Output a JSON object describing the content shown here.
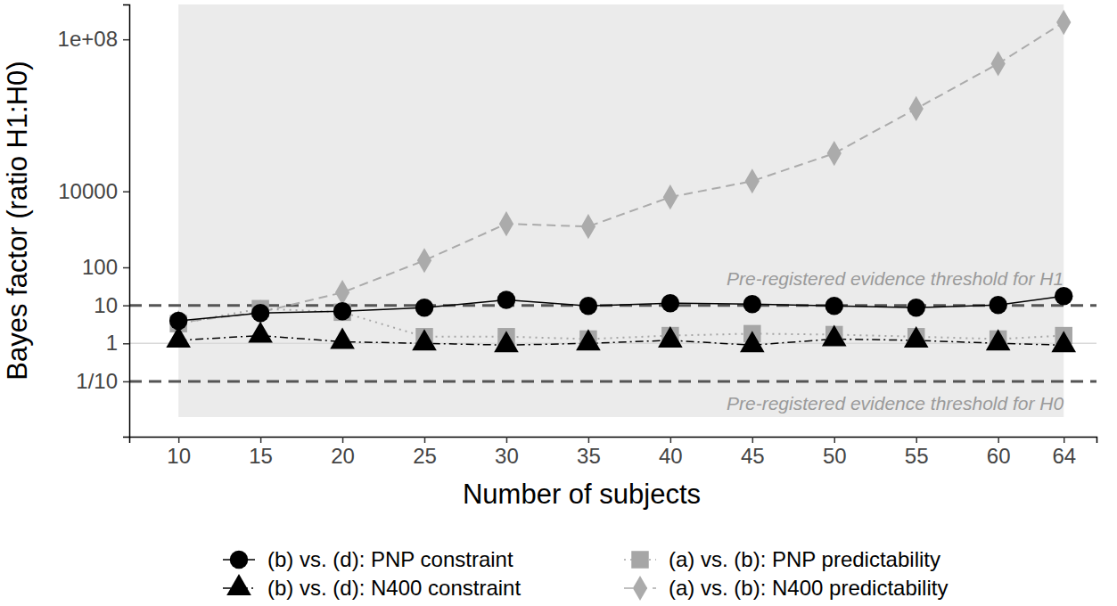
{
  "chart_data": {
    "type": "line",
    "x_label": "Number of subjects",
    "y_label": "Bayes factor (ratio H1:H0)",
    "log": "y",
    "x": [
      10,
      15,
      20,
      25,
      30,
      35,
      40,
      45,
      50,
      55,
      60,
      64
    ],
    "xlim": [
      7,
      66
    ],
    "xticks": [
      10,
      15,
      20,
      25,
      30,
      35,
      40,
      45,
      50,
      55,
      60,
      64
    ],
    "ylim": [
      0.0035,
      830000000
    ],
    "yticks": [
      {
        "value": 0.1,
        "label": "1/10"
      },
      1,
      10,
      100,
      10000,
      {
        "value": 100000000,
        "label": "1e+08"
      }
    ],
    "baseline": 1,
    "annotations": [
      {
        "text": "Pre-registered evidence threshold for H1",
        "y": 10
      },
      {
        "text": "Pre-registered evidence threshold for H0",
        "y": 0.1
      }
    ],
    "legend": "bottom",
    "series": [
      {
        "name": "(b) vs. (d): PNP constraint",
        "color": "#000000",
        "marker": "circle",
        "line_style": "solid",
        "values": [
          3.9,
          6.3,
          7.0,
          8.7,
          14,
          9.7,
          11.4,
          10.8,
          9.7,
          8.7,
          10.2,
          17.5
        ]
      },
      {
        "name": "(b) vs. (d): N400 constraint",
        "color": "#000000",
        "marker": "triangle",
        "line_style": "dashdot",
        "values": [
          1.2,
          1.6,
          1.1,
          1.0,
          0.9,
          1.0,
          1.2,
          0.9,
          1.3,
          1.2,
          1.0,
          0.9
        ]
      },
      {
        "name": "(a) vs. (b): PNP predictability",
        "color": "#a6a6a6",
        "marker": "square",
        "line_style": "dotted",
        "values": [
          3.3,
          8.2,
          6.6,
          1.5,
          1.5,
          1.3,
          1.6,
          1.8,
          1.7,
          1.5,
          1.3,
          1.6
        ]
      },
      {
        "name": "(a) vs. (b): N400 predictability",
        "color": "#ababab",
        "marker": "diamond",
        "line_style": "dashed",
        "values": [
          3.5,
          6.6,
          21.8,
          152,
          1400,
          1190,
          7070,
          18600,
          100000,
          1500000,
          23000000,
          280000000
        ]
      }
    ]
  }
}
